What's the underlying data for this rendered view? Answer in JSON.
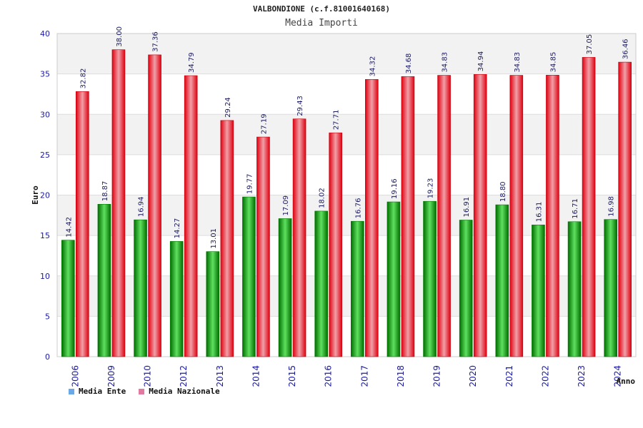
{
  "header": {
    "title": "VALBONDIONE (c.f.81001640168)",
    "subtitle": "Media Importi"
  },
  "legend": {
    "items": [
      {
        "label": "Media Ente",
        "color": "#6aa8e8"
      },
      {
        "label": "Media Nazionale",
        "color": "#e07aa0"
      }
    ]
  },
  "colors": {
    "ente": "#0a9d0a",
    "nazionale": "#e8101c",
    "axis_text": "#1a1aa0",
    "band": "#f2f2f2"
  },
  "chart_data": {
    "type": "bar",
    "title": "VALBONDIONE (c.f.81001640168)",
    "subtitle": "Media Importi",
    "xlabel": "Anno",
    "ylabel": "Euro",
    "ylim": [
      0,
      40
    ],
    "yticks": [
      0,
      5,
      10,
      15,
      20,
      25,
      30,
      35,
      40
    ],
    "grid": true,
    "legend_position": "bottom-left",
    "categories": [
      "2006",
      "2009",
      "2010",
      "2012",
      "2013",
      "2014",
      "2015",
      "2016",
      "2017",
      "2018",
      "2019",
      "2020",
      "2021",
      "2022",
      "2023",
      "2024"
    ],
    "series": [
      {
        "name": "Media Ente",
        "values": [
          14.42,
          18.87,
          16.94,
          14.27,
          13.01,
          19.77,
          17.09,
          18.02,
          16.76,
          19.16,
          19.23,
          16.91,
          18.8,
          16.31,
          16.71,
          16.98
        ]
      },
      {
        "name": "Media Nazionale",
        "values": [
          32.82,
          38.0,
          37.36,
          34.79,
          29.24,
          27.19,
          29.43,
          27.71,
          34.32,
          34.68,
          34.83,
          34.94,
          34.83,
          34.85,
          37.05,
          36.46
        ]
      }
    ]
  }
}
